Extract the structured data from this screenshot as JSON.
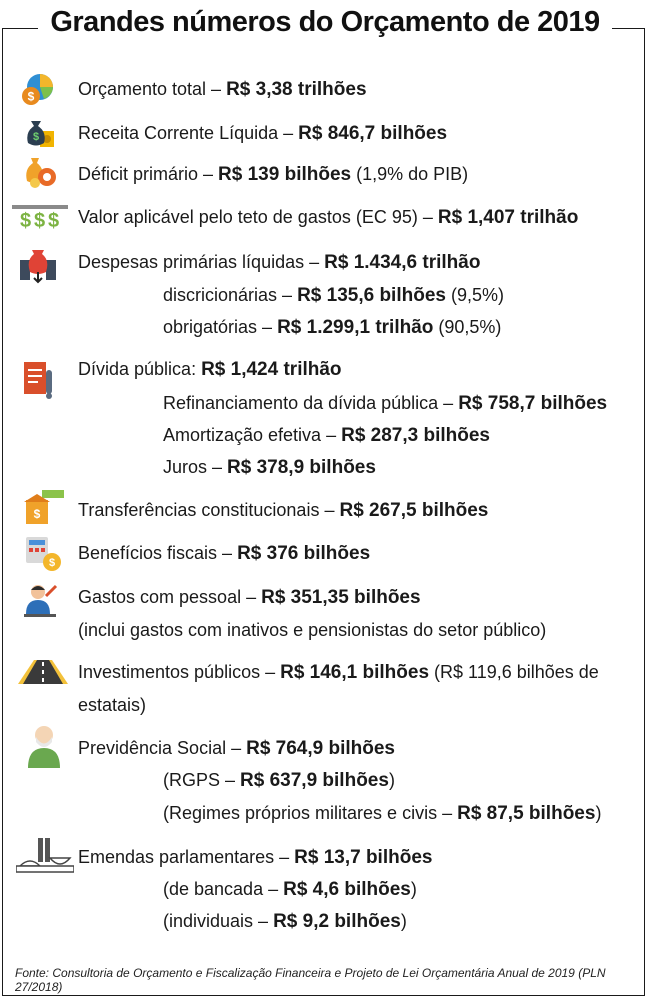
{
  "title": "Grandes números do Orçamento de 2019",
  "items": {
    "orcamento": {
      "label": "Orçamento total – ",
      "value": "R$ 3,38 trilhões"
    },
    "receita": {
      "label": "Receita Corrente Líquida – ",
      "value": "R$ 846,7 bilhões"
    },
    "deficit": {
      "label": "Déficit primário – ",
      "value": "R$ 139 bilhões",
      "note": " (1,9% do PIB)"
    },
    "teto": {
      "label": "Valor aplicável pelo teto de gastos (EC 95) – ",
      "value": "R$ 1,407 trilhão"
    },
    "despesas": {
      "label": "Despesas primárias líquidas – ",
      "value": "R$ 1.434,6 trilhão",
      "sub1": {
        "label": "discricionárias – ",
        "value": "R$ 135,6 bilhões",
        "note": " (9,5%)"
      },
      "sub2": {
        "label": "obrigatórias – ",
        "value": "R$ 1.299,1 trilhão",
        "note": " (90,5%)"
      }
    },
    "divida": {
      "label": "Dívida pública: ",
      "value": "R$ 1,424 trilhão",
      "sub1": {
        "label": "Refinanciamento da dívida pública – ",
        "value": "R$ 758,7 bilhões"
      },
      "sub2": {
        "label": "Amortização efetiva – ",
        "value": "R$ 287,3 bilhões"
      },
      "sub3": {
        "label": "Juros – ",
        "value": "R$ 378,9 bilhões"
      }
    },
    "transferencias": {
      "label": "Transferências constitucionais – ",
      "value": "R$ 267,5 bilhões"
    },
    "beneficios": {
      "label": "Benefícios fiscais – ",
      "value": "R$ 376 bilhões"
    },
    "pessoal": {
      "label": "Gastos com pessoal – ",
      "value": "R$ 351,35 bilhões",
      "line2": "(inclui gastos com inativos e pensionistas do setor público)"
    },
    "investimentos": {
      "label": "Investimentos públicos – ",
      "value": "R$ 146,1 bilhões",
      "note": " (R$ 119,6 bilhões de",
      "line2": "estatais)"
    },
    "previdencia": {
      "label": "Previdência Social – ",
      "value": "R$ 764,9 bilhões",
      "sub1": {
        "open": "(RGPS – ",
        "value": "R$ 637,9 bilhões",
        "close": ")"
      },
      "sub2": {
        "open": "(Regimes próprios militares e civis – ",
        "value": "R$ 87,5 bilhões",
        "close": ")"
      }
    },
    "emendas": {
      "label": "Emendas parlamentares – ",
      "value": "R$ 13,7 bilhões",
      "sub1": {
        "open": "(de bancada – ",
        "value": "R$ 4,6 bilhões",
        "close": ")"
      },
      "sub2": {
        "open": "(individuais – ",
        "value": "R$ 9,2 bilhões",
        "close": ")"
      }
    }
  },
  "footer": "Fonte: Consultoria de Orçamento e Fiscalização Financeira e Projeto de Lei Orçamentária Anual de 2019 (PLN 27/2018)",
  "icons": [
    "pie-chart-coin-icon",
    "money-bag-icon",
    "money-bag-gear-icon",
    "dollar-signs-icon",
    "money-down-icon",
    "document-scroll-icon",
    "bank-building-icon",
    "calculator-coin-icon",
    "person-at-desk-icon",
    "road-icon",
    "elderly-person-icon",
    "congress-building-icon"
  ]
}
